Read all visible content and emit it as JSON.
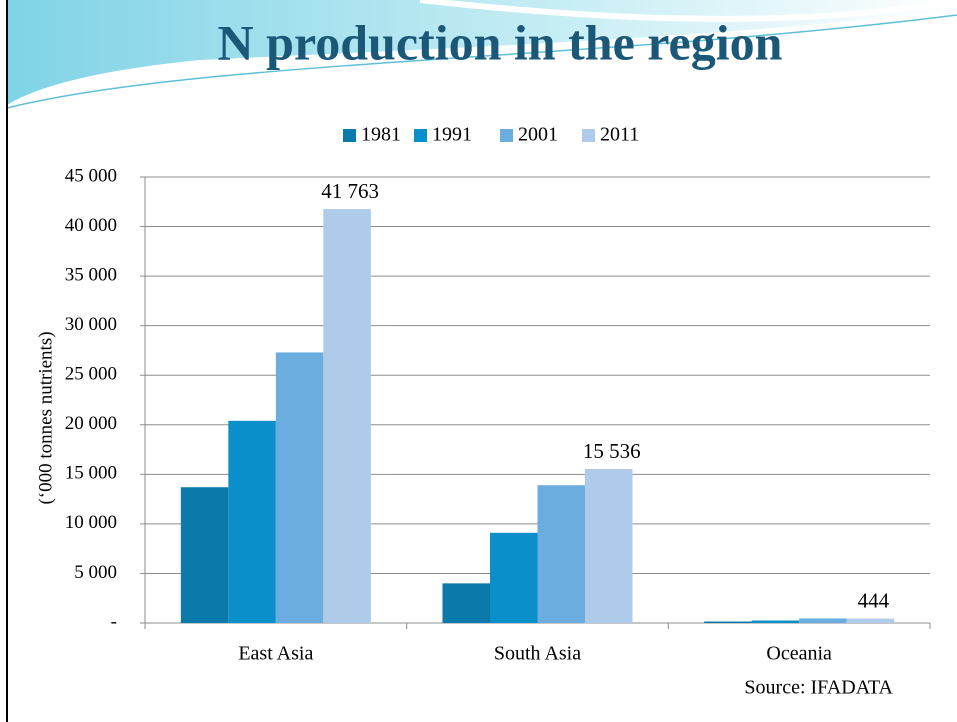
{
  "chart_data": {
    "type": "bar",
    "title": "N production in the region",
    "y_label": "(‘000 tonnes nutrients)",
    "source": "Source: IFADATA",
    "categories": [
      "East Asia",
      "South Asia",
      "Oceania"
    ],
    "series": [
      {
        "name": "1981",
        "color": "#0b79aa",
        "values": [
          13700,
          4000,
          150
        ]
      },
      {
        "name": "1991",
        "color": "#0a8fca",
        "values": [
          20400,
          9100,
          250
        ]
      },
      {
        "name": "2001",
        "color": "#6badde",
        "values": [
          27300,
          13900,
          460
        ]
      },
      {
        "name": "2011",
        "color": "#aecbea",
        "values": [
          41763,
          15536,
          444
        ],
        "value_labels": [
          "41 763",
          "15 536",
          "444"
        ]
      }
    ],
    "ylim": [
      0,
      45000
    ],
    "yticks": [
      {
        "value": 0,
        "label": "-"
      },
      {
        "value": 5000,
        "label": "5 000"
      },
      {
        "value": 10000,
        "label": "10 000"
      },
      {
        "value": 15000,
        "label": "15 000"
      },
      {
        "value": 20000,
        "label": "20 000"
      },
      {
        "value": 25000,
        "label": "25 000"
      },
      {
        "value": 30000,
        "label": "30 000"
      },
      {
        "value": 35000,
        "label": "35 000"
      },
      {
        "value": 40000,
        "label": "40 000"
      },
      {
        "value": 45000,
        "label": "45 000"
      }
    ],
    "grid": true,
    "legend": "top"
  }
}
